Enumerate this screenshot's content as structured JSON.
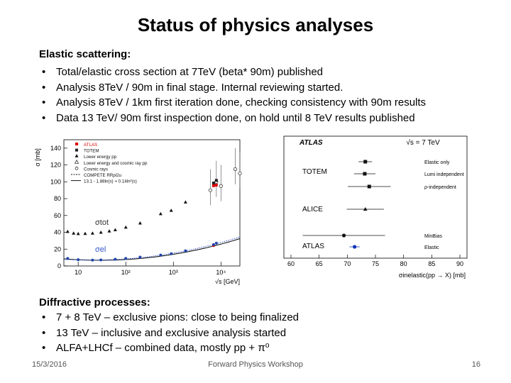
{
  "slide": {
    "title": "Status of physics analyses",
    "elastic": {
      "heading": "Elastic scattering:",
      "bullets": [
        "Total/elastic cross section at 7TeV (beta* 90m) published",
        "Analysis 8TeV / 90m in final stage. Internal reviewing started.",
        "Analysis 8TeV / 1km  first iteration done, checking consistency with 90m results",
        "Data 13 TeV/ 90m first inspection done, on hold until 8 TeV results published"
      ]
    },
    "diffractive": {
      "heading": "Diffractive processes:",
      "bullets": [
        "7 + 8 TeV – exclusive pions: close to being finalized",
        "13 TeV – inclusive and exclusive analysis started",
        "ALFA+LHCf – combined data, mostly pp + π⁰"
      ]
    },
    "footer": {
      "date": "15/3/2016",
      "event": "Forward Physics Workshop",
      "page": "16"
    }
  },
  "chart_data": [
    {
      "type": "scatter",
      "xlabel": "√s [GeV]",
      "ylabel": "σ [mb]",
      "x_scale": "log",
      "xlim": [
        5,
        25000
      ],
      "ylim": [
        0,
        150
      ],
      "x_ticks": [
        10,
        100,
        1000,
        10000
      ],
      "x_tick_labels": [
        "10",
        "10²",
        "10³",
        "10⁴"
      ],
      "y_ticks": [
        0,
        20,
        40,
        60,
        80,
        100,
        120,
        140
      ],
      "legend_entries": [
        "ATLAS",
        "TOTEM",
        "Lower energy pp",
        "Lower energy and cosmic ray pp",
        "Cosmic rays",
        "COMPETE RRpl2u",
        "13.1 - 1.88ln(s) + 0.14ln²(s)"
      ],
      "annotations": [
        "σtot",
        "σel"
      ],
      "series": [
        {
          "name": "Lower energy pp",
          "points": [
            [
              6,
              41
            ],
            [
              8,
              39
            ],
            [
              10,
              38.5
            ],
            [
              14,
              38.6
            ],
            [
              20,
              39
            ],
            [
              30,
              40
            ],
            [
              45,
              41.5
            ],
            [
              60,
              43
            ],
            [
              100,
              46
            ],
            [
              200,
              51
            ],
            [
              540,
              62
            ],
            [
              900,
              66
            ],
            [
              1800,
              76
            ]
          ],
          "el_points": [
            [
              6,
              9
            ],
            [
              10,
              7.5
            ],
            [
              20,
              7
            ],
            [
              30,
              7.2
            ],
            [
              60,
              8
            ],
            [
              100,
              9
            ],
            [
              200,
              10.5
            ],
            [
              540,
              13
            ],
            [
              900,
              14.5
            ],
            [
              1800,
              18
            ]
          ]
        },
        {
          "name": "Cosmic rays",
          "points": [
            [
              6000,
              90
            ],
            [
              8000,
              100
            ],
            [
              10000,
              95
            ],
            [
              20000,
              115
            ],
            [
              25000,
              110
            ]
          ]
        },
        {
          "name": "ATLAS",
          "points": [
            [
              7000,
              95.4
            ],
            [
              8000,
              96.1
            ]
          ],
          "el_points": [
            [
              7000,
              24.3
            ]
          ]
        },
        {
          "name": "TOTEM",
          "points": [
            [
              7000,
              98.6
            ],
            [
              8000,
              101.7
            ]
          ],
          "el_points": [
            [
              7000,
              25.4
            ],
            [
              8000,
              27.1
            ]
          ]
        }
      ],
      "curves": [
        {
          "name": "13.1 - 1.88ln(s) + 0.14ln²(s)",
          "formula": "13.1-1.88ln(s)+0.14ln²(s)"
        }
      ]
    },
    {
      "type": "scatter",
      "xlabel": "σinelastic(pp → X) [mb]",
      "xlim": [
        60,
        90
      ],
      "x_ticks": [
        60,
        65,
        70,
        75,
        80,
        85,
        90
      ],
      "header_left": "ATLAS",
      "header_right": "√s = 7 TeV",
      "groups": [
        {
          "label": "TOTEM",
          "points": [
            {
              "label": "Elastic only",
              "value": 73.2,
              "err": 1.2
            },
            {
              "label": "Lumi independent",
              "value": 73.1,
              "err": 1.9
            },
            {
              "label": "ρ-independent",
              "value": 73.9,
              "err": 3.8
            }
          ]
        },
        {
          "label": "ALICE",
          "points": [
            {
              "label": "",
              "value": 73.2,
              "err": 3.3
            }
          ]
        },
        {
          "label": "ATLAS",
          "points": [
            {
              "label": "MinBias",
              "value": 69.4,
              "err": 7.3
            },
            {
              "label": "Elastic",
              "value": 71.3,
              "err": 0.9
            }
          ]
        }
      ]
    }
  ]
}
